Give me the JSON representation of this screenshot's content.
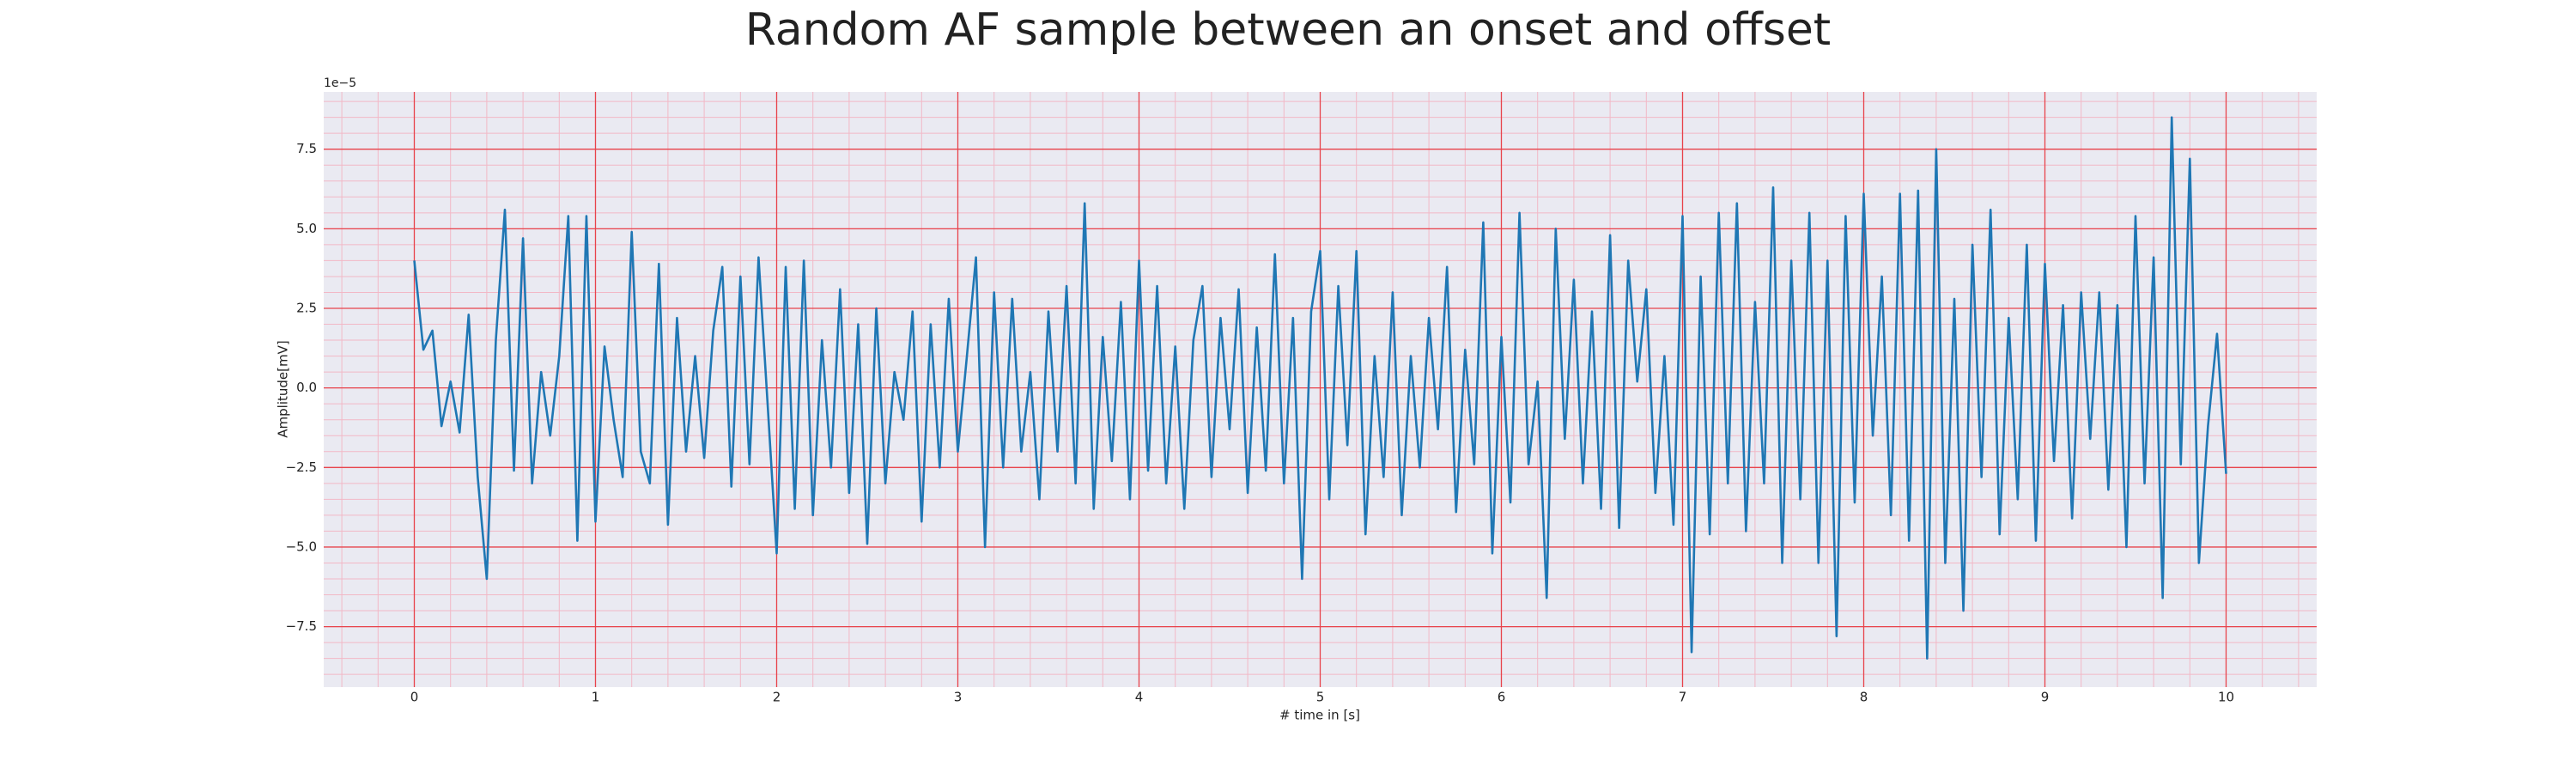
{
  "chart_data": {
    "type": "line",
    "title": "Random AF sample between an onset and offset",
    "x_label": "# time in [s]",
    "y_label": "Amplitude[mV]",
    "y_offset_text": "1e−5",
    "color": "#1f77b4",
    "grid": true,
    "minor_grid": true,
    "xlim": [
      -0.5,
      10.5
    ],
    "ylim": [
      -9.4,
      9.3
    ],
    "xticks": [
      0,
      1,
      2,
      3,
      4,
      5,
      6,
      7,
      8,
      9,
      10
    ],
    "yticks": [
      {
        "value": -7.5,
        "label": "−7.5"
      },
      {
        "value": -5,
        "label": "−5.0"
      },
      {
        "value": -2.5,
        "label": "−2.5"
      },
      {
        "value": 0,
        "label": "0.0"
      },
      2.5,
      {
        "value": 5,
        "label": "5.0"
      },
      7.5
    ],
    "x": [
      0,
      0.05,
      0.1,
      0.15,
      0.2,
      0.25,
      0.3,
      0.35,
      0.4,
      0.45,
      0.5,
      0.55,
      0.6,
      0.65,
      0.7,
      0.75,
      0.8,
      0.85,
      0.9,
      0.95,
      1,
      1.05,
      1.1,
      1.15,
      1.2,
      1.25,
      1.3,
      1.35,
      1.4,
      1.45,
      1.5,
      1.55,
      1.6,
      1.65,
      1.7,
      1.75,
      1.8,
      1.85,
      1.9,
      1.95,
      2,
      2.05,
      2.1,
      2.15,
      2.2,
      2.25,
      2.3,
      2.35,
      2.4,
      2.45,
      2.5,
      2.55,
      2.6,
      2.65,
      2.7,
      2.75,
      2.8,
      2.85,
      2.9,
      2.95,
      3,
      3.05,
      3.1,
      3.15,
      3.2,
      3.25,
      3.3,
      3.35,
      3.4,
      3.45,
      3.5,
      3.55,
      3.6,
      3.65,
      3.7,
      3.75,
      3.8,
      3.85,
      3.9,
      3.95,
      4,
      4.05,
      4.1,
      4.15,
      4.2,
      4.25,
      4.3,
      4.35,
      4.4,
      4.45,
      4.5,
      4.55,
      4.6,
      4.65,
      4.7,
      4.75,
      4.8,
      4.85,
      4.9,
      4.95,
      5,
      5.05,
      5.1,
      5.15,
      5.2,
      5.25,
      5.3,
      5.35,
      5.4,
      5.45,
      5.5,
      5.55,
      5.6,
      5.65,
      5.7,
      5.75,
      5.8,
      5.85,
      5.9,
      5.95,
      6,
      6.05,
      6.1,
      6.15,
      6.2,
      6.25,
      6.3,
      6.35,
      6.4,
      6.45,
      6.5,
      6.55,
      6.6,
      6.65,
      6.7,
      6.75,
      6.8,
      6.85,
      6.9,
      6.95,
      7,
      7.05,
      7.1,
      7.15,
      7.2,
      7.25,
      7.3,
      7.35,
      7.4,
      7.45,
      7.5,
      7.55,
      7.6,
      7.65,
      7.7,
      7.75,
      7.8,
      7.85,
      7.9,
      7.95,
      8,
      8.05,
      8.1,
      8.15,
      8.2,
      8.25,
      8.3,
      8.35,
      8.4,
      8.45,
      8.5,
      8.55,
      8.6,
      8.65,
      8.7,
      8.75,
      8.8,
      8.85,
      8.9,
      8.95,
      9,
      9.05,
      9.1,
      9.15,
      9.2,
      9.25,
      9.3,
      9.35,
      9.4,
      9.45,
      9.5,
      9.55,
      9.6,
      9.65,
      9.7,
      9.75,
      9.8,
      9.85,
      9.9,
      9.95,
      10
    ],
    "values": [
      4.0,
      1.2,
      1.8,
      -1.2,
      0.2,
      -1.4,
      2.3,
      -2.8,
      -6.0,
      1.5,
      5.6,
      -2.6,
      4.7,
      -3.0,
      0.5,
      -1.5,
      1.0,
      5.4,
      -4.8,
      5.4,
      -4.2,
      1.3,
      -1.0,
      -2.8,
      4.9,
      -2.0,
      -3.0,
      3.9,
      -4.3,
      2.2,
      -2.0,
      1.0,
      -2.2,
      1.8,
      3.8,
      -3.1,
      3.5,
      -2.4,
      4.1,
      -0.5,
      -5.2,
      3.8,
      -3.8,
      4.0,
      -4.0,
      1.5,
      -2.5,
      3.1,
      -3.3,
      2.0,
      -4.9,
      2.5,
      -3.0,
      0.5,
      -1.0,
      2.4,
      -4.2,
      2.0,
      -2.5,
      2.8,
      -2.0,
      1.0,
      4.1,
      -5.0,
      3.0,
      -2.5,
      2.8,
      -2.0,
      0.5,
      -3.5,
      2.4,
      -2.0,
      3.2,
      -3.0,
      5.8,
      -3.8,
      1.6,
      -2.3,
      2.7,
      -3.5,
      4.0,
      -2.6,
      3.2,
      -3.0,
      1.3,
      -3.8,
      1.5,
      3.2,
      -2.8,
      2.2,
      -1.3,
      3.1,
      -3.3,
      1.9,
      -2.6,
      4.2,
      -3.0,
      2.2,
      -6.0,
      2.4,
      4.3,
      -3.5,
      3.2,
      -1.8,
      4.3,
      -4.6,
      1.0,
      -2.8,
      3.0,
      -4.0,
      1.0,
      -2.5,
      2.2,
      -1.3,
      3.8,
      -3.9,
      1.2,
      -2.4,
      5.2,
      -5.2,
      1.6,
      -3.6,
      5.5,
      -2.4,
      0.2,
      -6.6,
      5.0,
      -1.6,
      3.4,
      -3.0,
      2.4,
      -3.8,
      4.8,
      -4.4,
      4.0,
      0.2,
      3.1,
      -3.3,
      1.0,
      -4.3,
      5.4,
      -8.3,
      3.5,
      -4.6,
      5.5,
      -3.0,
      5.8,
      -4.5,
      2.7,
      -3.0,
      6.3,
      -5.5,
      4.0,
      -3.5,
      5.5,
      -5.5,
      4.0,
      -7.8,
      5.4,
      -3.6,
      6.1,
      -1.5,
      3.5,
      -4.0,
      6.1,
      -4.8,
      6.2,
      -8.5,
      7.5,
      -5.5,
      2.8,
      -7.0,
      4.5,
      -2.8,
      5.6,
      -4.6,
      2.2,
      -3.5,
      4.5,
      -4.8,
      3.9,
      -2.3,
      2.6,
      -4.1,
      3.0,
      -1.6,
      3.0,
      -3.2,
      2.6,
      -5.0,
      5.4,
      -3.0,
      4.1,
      -6.6,
      8.5,
      -2.4,
      7.2,
      -5.5,
      -1.2,
      1.7,
      -2.7
    ]
  }
}
